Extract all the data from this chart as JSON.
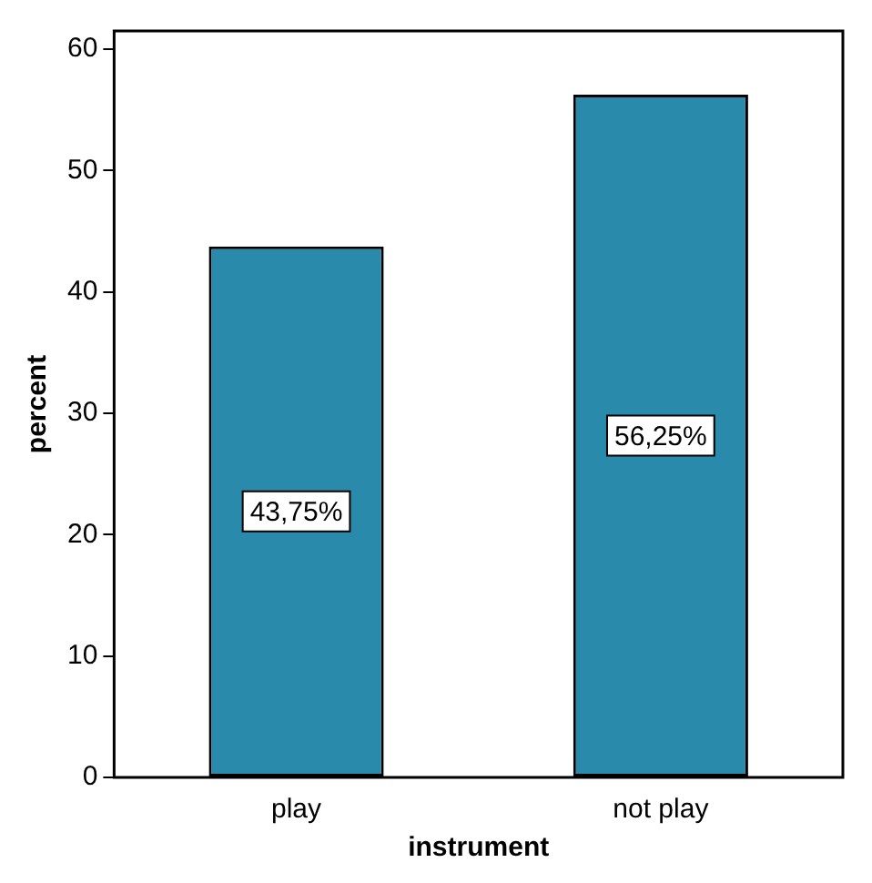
{
  "chart_data": {
    "type": "bar",
    "xlabel": "instrument",
    "ylabel": "percent",
    "categories": [
      "play",
      "not play"
    ],
    "values": [
      43.75,
      56.25
    ],
    "value_labels": [
      "43,75%",
      "56,25%"
    ],
    "color": "#2a8aab",
    "ylim": [
      0,
      61.5
    ],
    "yticks": [
      0,
      10,
      20,
      30,
      40,
      50,
      60
    ],
    "grid": false,
    "legend": false
  }
}
